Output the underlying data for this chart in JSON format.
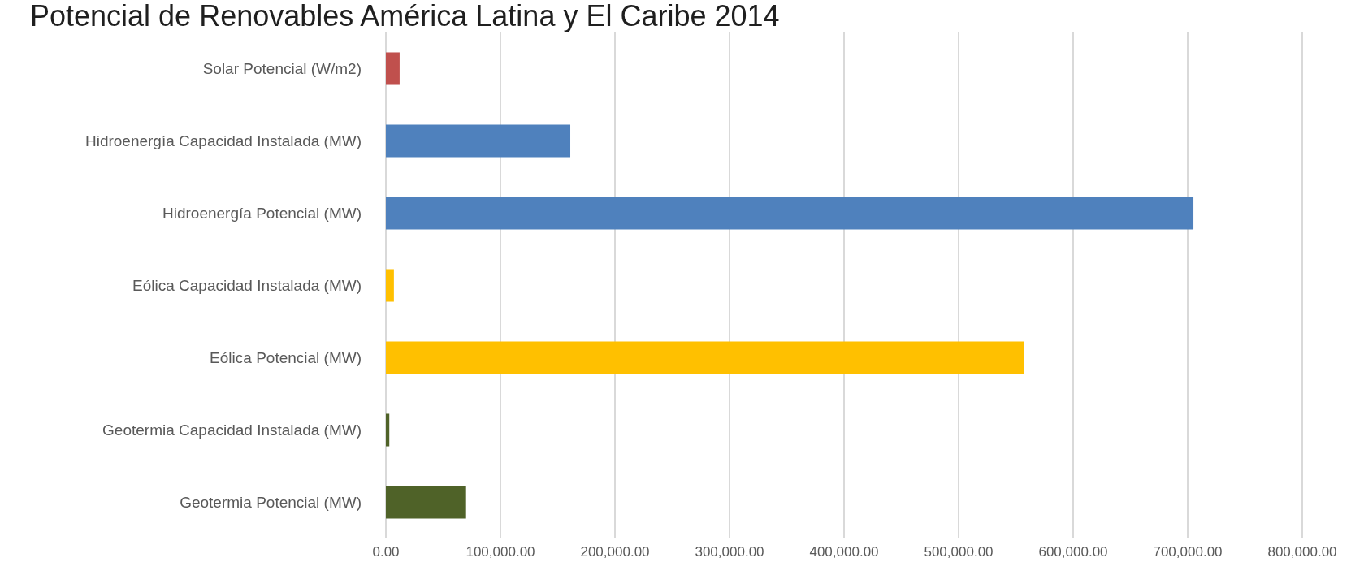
{
  "chart_data": {
    "type": "bar",
    "orientation": "horizontal",
    "title": "Potencial de Renovables América Latina y El Caribe 2014",
    "categories": [
      "Solar Potencial (W/m2)",
      "Hidroenergía Capacidad Instalada (MW)",
      "Hidroenergía Potencial (MW)",
      "Eólica Capacidad Instalada (MW)",
      "Eólica Potencial (MW)",
      "Geotermia Capacidad Instalada (MW)",
      "Geotermia Potencial (MW)"
    ],
    "values": [
      12000,
      161000,
      705000,
      7000,
      557000,
      3000,
      70000
    ],
    "colors": [
      "#c0504d",
      "#4f81bd",
      "#4f81bd",
      "#ffc000",
      "#ffc000",
      "#4f6228",
      "#4f6228"
    ],
    "xlim": [
      0,
      800000
    ],
    "xticks": [
      {
        "value": 0,
        "label": "0.00"
      },
      {
        "value": 100000,
        "label": "100,000.00"
      },
      {
        "value": 200000,
        "label": "200,000.00"
      },
      {
        "value": 300000,
        "label": "300,000.00"
      },
      {
        "value": 400000,
        "label": "400,000.00"
      },
      {
        "value": 500000,
        "label": "500,000.00"
      },
      {
        "value": 600000,
        "label": "600,000.00"
      },
      {
        "value": 700000,
        "label": "700,000.00"
      },
      {
        "value": 800000,
        "label": "800,000.00"
      }
    ],
    "grid": "x"
  }
}
